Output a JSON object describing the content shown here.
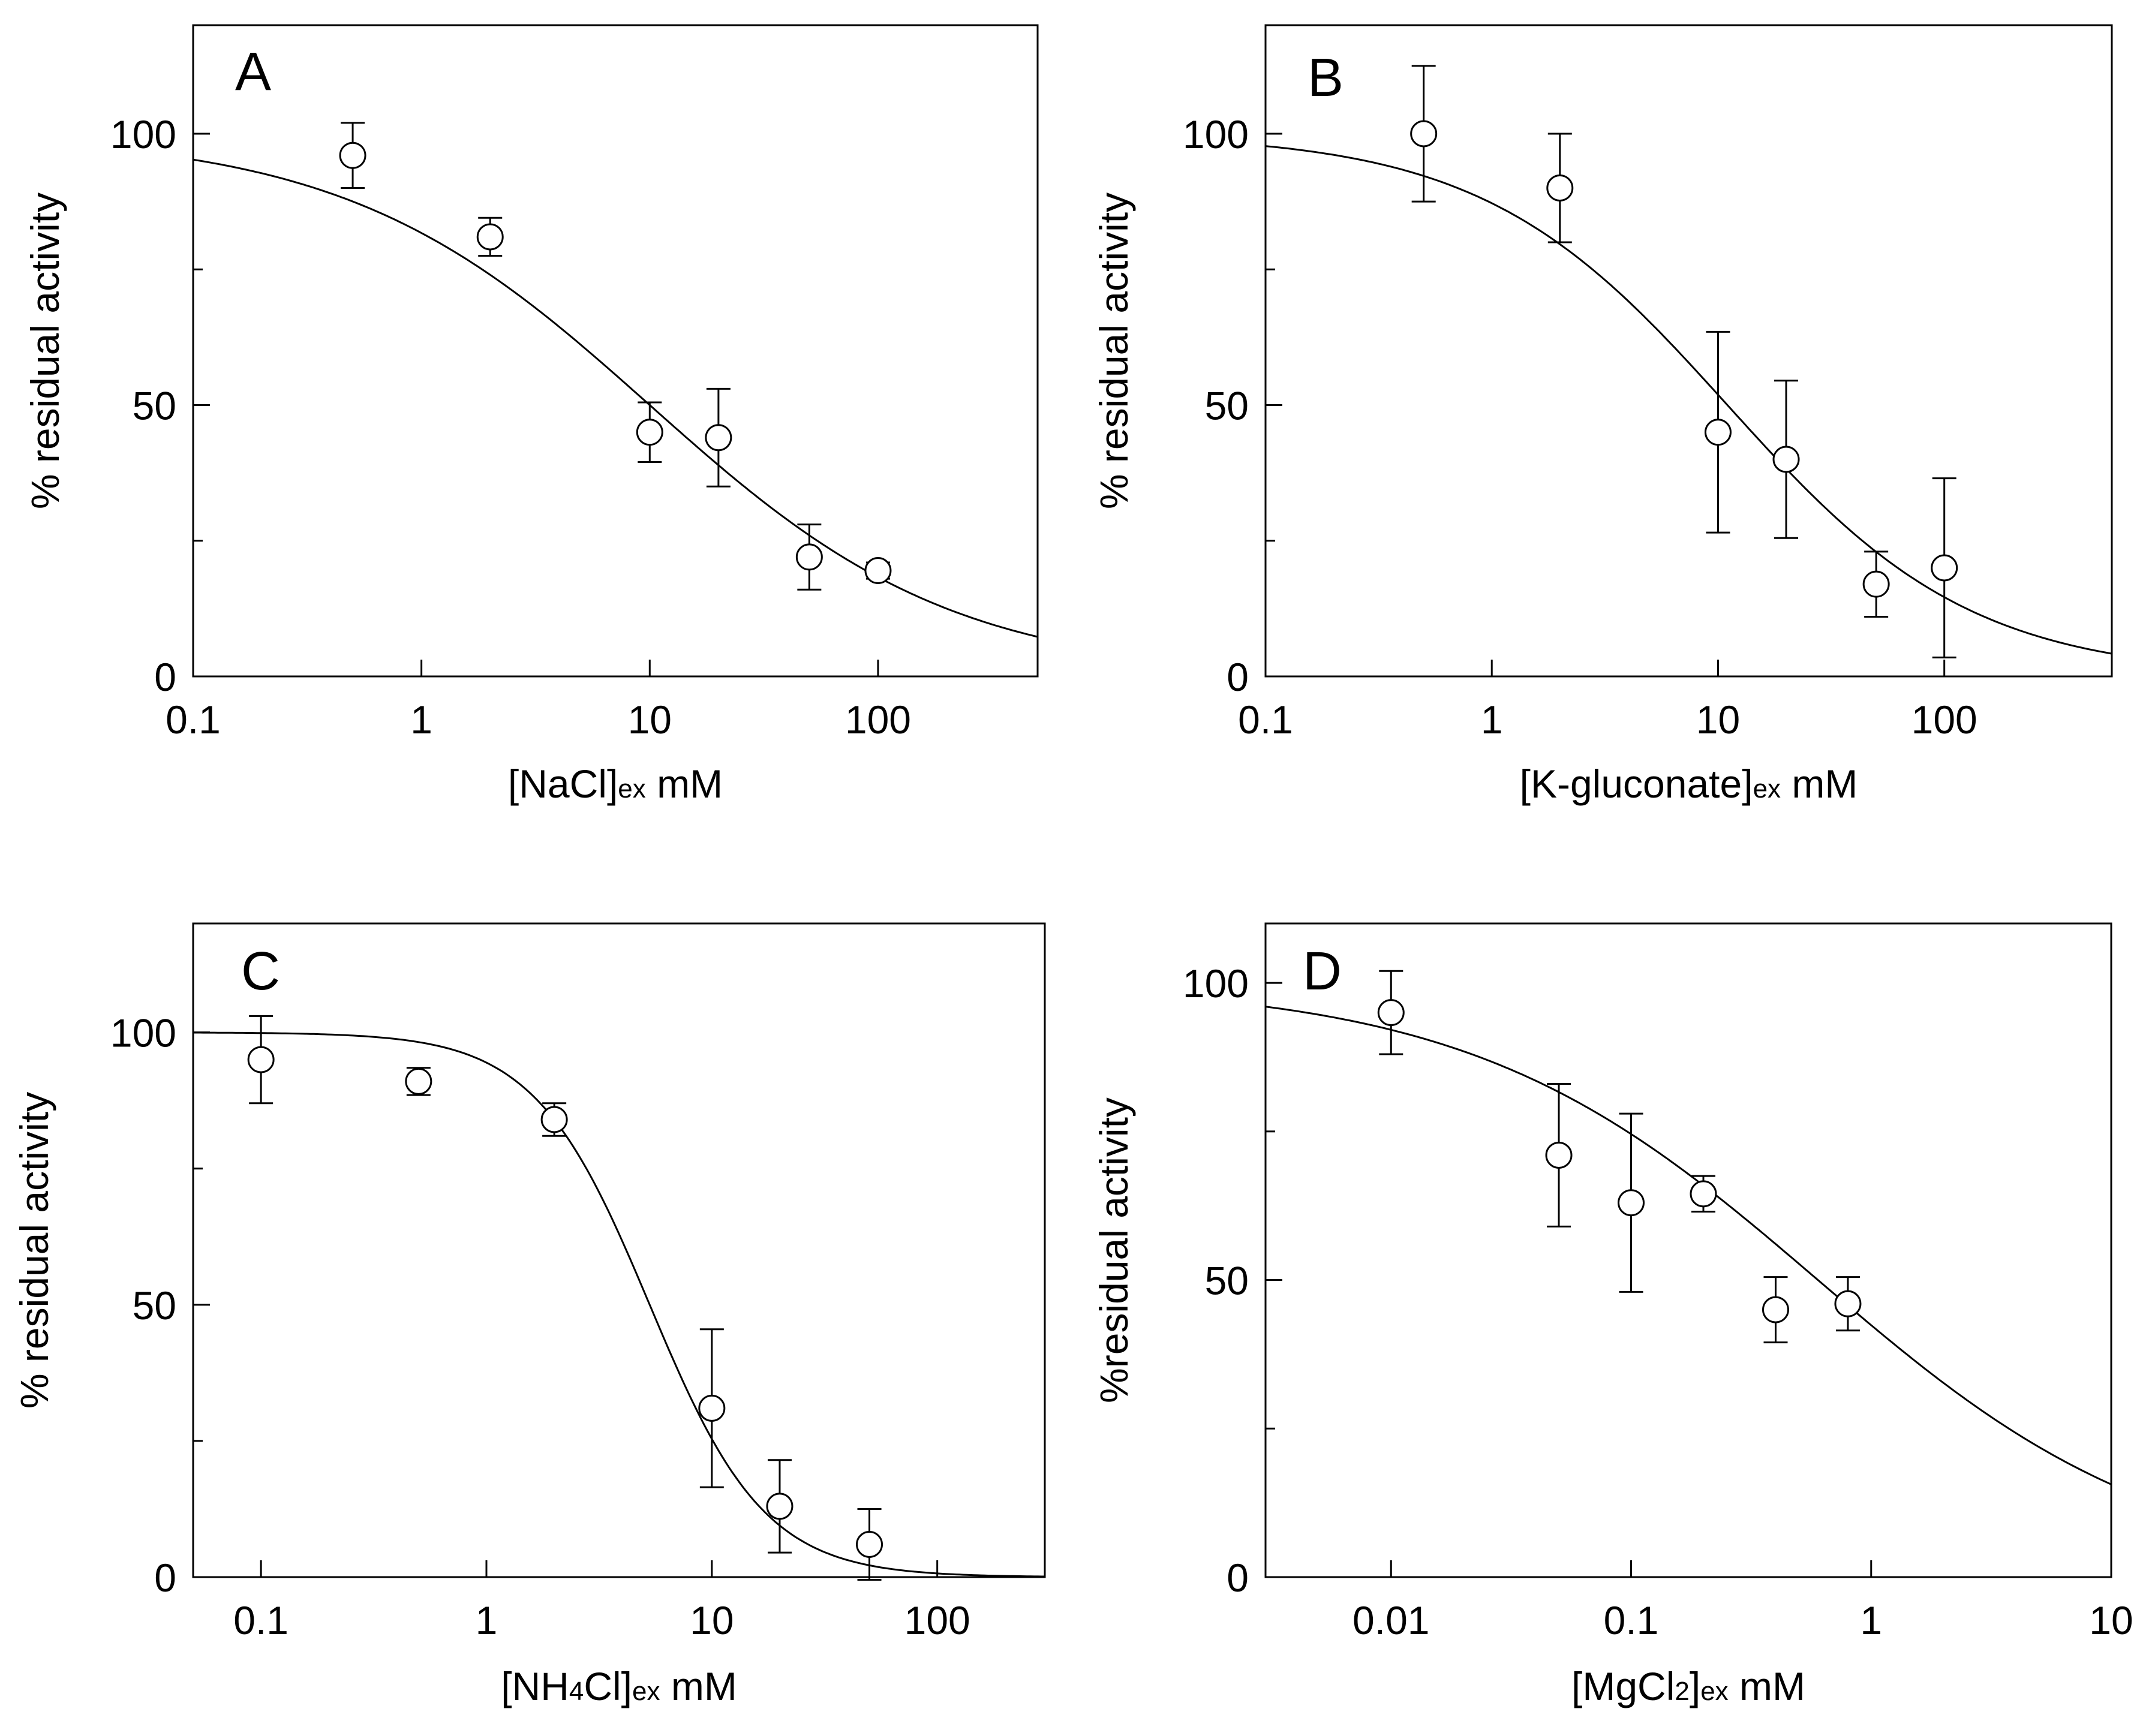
{
  "chart_data": [
    {
      "type": "scatter",
      "panel_label": "A",
      "xscale": "log",
      "xlim": [
        0.1,
        500
      ],
      "ylim": [
        0,
        120
      ],
      "xticks": [
        0.1,
        1,
        10,
        100
      ],
      "xtick_labels": [
        "0.1",
        "1",
        "10",
        "100"
      ],
      "yticks": [
        0,
        50,
        100
      ],
      "ytick_labels": [
        "0",
        "50",
        "100"
      ],
      "yminor_ticks": [
        25,
        75
      ],
      "xlabel": {
        "pre": "[NaCl]",
        "sub": "ex",
        "post": " mM"
      },
      "ylabel": "% residual activity",
      "points": {
        "x": [
          0.5,
          2,
          10,
          20,
          50,
          100
        ],
        "y": [
          96,
          81,
          45,
          44,
          22,
          19.5
        ],
        "err": [
          6,
          3.5,
          5.5,
          9,
          6,
          1.5
        ]
      },
      "fit": {
        "model": "hill",
        "top": 100,
        "ic50": 10,
        "hill": 0.65
      }
    },
    {
      "type": "scatter",
      "panel_label": "B",
      "xscale": "log",
      "xlim": [
        0.1,
        550
      ],
      "ylim": [
        0,
        120
      ],
      "xticks": [
        0.1,
        1,
        10,
        100
      ],
      "xtick_labels": [
        "0.1",
        "1",
        "10",
        "100"
      ],
      "yticks": [
        0,
        50,
        100
      ],
      "ytick_labels": [
        "0",
        "50",
        "100"
      ],
      "yminor_ticks": [
        25,
        75
      ],
      "xlabel": {
        "pre": "[K-gluconate]",
        "sub": "ex",
        "post": "  mM"
      },
      "ylabel": "% residual activity",
      "points": {
        "x": [
          0.5,
          2,
          10,
          20,
          50,
          100
        ],
        "y": [
          100,
          90,
          45,
          40,
          17,
          20
        ],
        "err": [
          12.5,
          10,
          18.5,
          14.5,
          6,
          16.5
        ]
      },
      "fit": {
        "model": "hill",
        "top": 100,
        "ic50": 11,
        "hill": 0.8
      }
    },
    {
      "type": "scatter",
      "panel_label": "C",
      "xscale": "log",
      "xlim": [
        0.05,
        300
      ],
      "ylim": [
        0,
        120
      ],
      "xticks": [
        0.1,
        1,
        10,
        100
      ],
      "xtick_labels": [
        "0.1",
        "1",
        "10",
        "100"
      ],
      "yticks": [
        0,
        50,
        100
      ],
      "ytick_labels": [
        "0",
        "50",
        "100"
      ],
      "yminor_ticks": [
        25,
        75
      ],
      "xlabel": {
        "pre": "[NH",
        "sub": "4",
        "post": "Cl]",
        "sub2": "ex",
        "post2": " mM"
      },
      "ylabel": "% residual activity",
      "points": {
        "x": [
          0.1,
          0.5,
          2,
          10,
          20,
          50
        ],
        "y": [
          95,
          91,
          84,
          31,
          13,
          6
        ],
        "err": [
          8,
          2.5,
          3,
          14.5,
          8.5,
          6.5
        ]
      },
      "fit": {
        "model": "hill",
        "top": 100,
        "ic50": 5.3,
        "hill": 1.7
      }
    },
    {
      "type": "scatter",
      "panel_label": "D",
      "xscale": "log",
      "xlim": [
        0.003,
        10
      ],
      "ylim": [
        0,
        110
      ],
      "xticks": [
        0.01,
        0.1,
        1,
        10
      ],
      "xtick_labels": [
        "0.01",
        "0.1",
        "1",
        "10"
      ],
      "yticks": [
        0,
        50,
        100
      ],
      "ytick_labels": [
        "0",
        "50",
        "100"
      ],
      "yminor_ticks": [
        25,
        75
      ],
      "xlabel": {
        "pre": "[MgCl",
        "sub": "2",
        "post": "]",
        "sub2": "ex",
        "post2": " mM"
      },
      "ylabel": "%residual activity",
      "points": {
        "x": [
          0.01,
          0.05,
          0.1,
          0.2,
          0.4,
          0.8
        ],
        "y": [
          95,
          71,
          63,
          64.5,
          45,
          46
        ],
        "err": [
          7,
          12,
          15,
          3,
          5.5,
          4.5
        ]
      },
      "fit": {
        "model": "hill",
        "top": 100,
        "ic50": 0.6,
        "hill": 0.6
      }
    }
  ]
}
